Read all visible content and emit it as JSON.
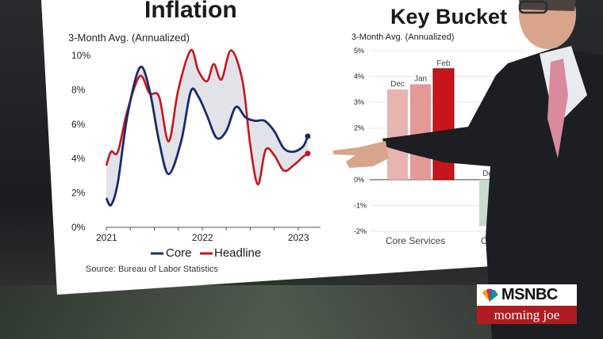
{
  "broadcast": {
    "network": "MSNBC",
    "show": "morning joe"
  },
  "colors": {
    "core": "#1b2a6b",
    "headline": "#c8141b",
    "gap_fill": "#d9dce4",
    "bar_dec": "#e8b4b0",
    "bar_jan": "#e39a96",
    "bar_feb": "#c8141b",
    "bar_neg": "#c9dccb"
  },
  "chart_data": [
    {
      "type": "line",
      "title": "Inflation",
      "subtitle": "3-Month Avg. (Annualized)",
      "x_ticks": [
        "2021",
        "2022",
        "2023"
      ],
      "y_ticks": [
        "0%",
        "2%",
        "4%",
        "6%",
        "8%",
        "10%"
      ],
      "ylim": [
        0,
        10
      ],
      "xlim": [
        2021.0,
        2023.2
      ],
      "grid": false,
      "legend_position": "bottom",
      "series": [
        {
          "name": "Core",
          "x": [
            2021.0,
            2021.05,
            2021.12,
            2021.22,
            2021.35,
            2021.45,
            2021.55,
            2021.65,
            2021.78,
            2021.88,
            2021.96,
            2022.05,
            2022.15,
            2022.25,
            2022.35,
            2022.45,
            2022.55,
            2022.65,
            2022.75,
            2022.85,
            2022.95,
            2023.05,
            2023.1
          ],
          "y": [
            1.7,
            1.3,
            2.6,
            6.5,
            9.3,
            8.0,
            5.0,
            3.1,
            5.0,
            7.9,
            7.6,
            6.5,
            5.2,
            5.6,
            7.0,
            6.4,
            6.2,
            6.2,
            5.6,
            4.6,
            4.4,
            4.7,
            5.3
          ]
        },
        {
          "name": "Headline",
          "x": [
            2021.0,
            2021.05,
            2021.12,
            2021.22,
            2021.35,
            2021.45,
            2021.55,
            2021.65,
            2021.75,
            2021.88,
            2021.96,
            2022.05,
            2022.12,
            2022.2,
            2022.3,
            2022.42,
            2022.5,
            2022.58,
            2022.66,
            2022.75,
            2022.85,
            2022.95,
            2023.05,
            2023.1
          ],
          "y": [
            3.6,
            4.4,
            4.4,
            6.8,
            8.8,
            7.8,
            7.6,
            5.0,
            8.0,
            10.3,
            9.1,
            8.5,
            9.5,
            8.6,
            10.3,
            8.5,
            4.8,
            2.5,
            4.5,
            4.2,
            3.3,
            3.6,
            4.1,
            4.3
          ]
        }
      ],
      "source": "Source: Bureau of Labor Statistics"
    },
    {
      "type": "bar",
      "title": "Key Bucket",
      "subtitle": "3-Month Avg. (Annualized)",
      "y_ticks": [
        "5%",
        "4%",
        "3%",
        "2%",
        "1%",
        "0%",
        "-1%",
        "-2%"
      ],
      "ylim": [
        -2,
        5
      ],
      "groups": [
        {
          "name": "Core Services",
          "categories": [
            "Dec",
            "Jan",
            "Feb"
          ],
          "values": [
            3.5,
            3.7,
            4.3
          ]
        },
        {
          "name": "C",
          "categories": [
            "Dec"
          ],
          "values": [
            -1.8
          ]
        }
      ]
    }
  ]
}
